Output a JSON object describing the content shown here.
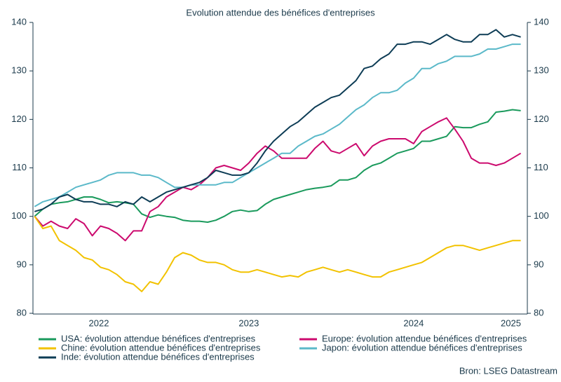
{
  "chart_data": {
    "type": "line",
    "title": "Evolution attendue des bénéfices d'entreprises",
    "source": "Bron: LSEG Datastream",
    "x": [
      2022.2,
      2022.25,
      2022.3,
      2022.35,
      2022.4,
      2022.45,
      2022.5,
      2022.55,
      2022.6,
      2022.65,
      2022.7,
      2022.75,
      2022.8,
      2022.85,
      2022.9,
      2022.95,
      2023.0,
      2023.05,
      2023.1,
      2023.15,
      2023.2,
      2023.25,
      2023.3,
      2023.35,
      2023.4,
      2023.45,
      2023.5,
      2023.55,
      2023.6,
      2023.65,
      2023.7,
      2023.75,
      2023.8,
      2023.85,
      2023.9,
      2023.95,
      2024.0,
      2024.05,
      2024.1,
      2024.15,
      2024.2,
      2024.25,
      2024.3,
      2024.35,
      2024.4,
      2024.45,
      2024.5,
      2024.55,
      2024.6,
      2024.65,
      2024.7,
      2024.75,
      2024.8,
      2024.85,
      2024.9,
      2024.95,
      2025.0,
      2025.05,
      2025.1,
      2025.15
    ],
    "xlim": [
      2022.19,
      2025.19
    ],
    "xticks": [
      {
        "value": 2022.59,
        "label": "2022"
      },
      {
        "value": 2023.5,
        "label": "2023"
      },
      {
        "value": 2024.5,
        "label": "2024"
      },
      {
        "value": 2025.09,
        "label": "2025"
      }
    ],
    "ylim": [
      80,
      140
    ],
    "yticks": [
      80,
      90,
      100,
      110,
      120,
      130,
      140
    ],
    "y2lim": [
      80,
      140
    ],
    "y2ticks": [
      80,
      90,
      100,
      110,
      120,
      130,
      140
    ],
    "grid": false,
    "series": [
      {
        "name": "USA: évolution attendue bénéfices d'entreprises",
        "color": "#1a9a5c",
        "values": [
          100,
          101.5,
          102.5,
          102.8,
          103,
          103.5,
          104,
          104,
          103.5,
          102.8,
          103,
          102.8,
          102.5,
          100.5,
          99.8,
          100.3,
          100,
          99.8,
          99.2,
          99,
          99,
          98.8,
          99.2,
          100,
          101,
          101.3,
          101,
          101.2,
          102.5,
          103.5,
          104,
          104.5,
          105,
          105.5,
          105.8,
          106,
          106.3,
          107.5,
          107.5,
          108,
          109.5,
          110.5,
          111,
          112,
          113,
          113.5,
          114,
          115.5,
          115.5,
          116,
          116.5,
          118.5,
          118.3,
          118.3,
          119,
          119.5,
          121.5,
          121.7,
          122,
          121.8
        ]
      },
      {
        "name": "Europe: évolution attendue bénéfices d'entreprises",
        "color": "#cc0a6e",
        "values": [
          100,
          98,
          99,
          98,
          97.5,
          99.5,
          98.5,
          96,
          98,
          97.5,
          96.5,
          95,
          97,
          97,
          101,
          102,
          104,
          105,
          106,
          105.5,
          106.5,
          108,
          110,
          110.5,
          110,
          109.5,
          111,
          113,
          114.5,
          113.5,
          112,
          112,
          112,
          112,
          114,
          115.5,
          113.5,
          113,
          114,
          115,
          112.5,
          114.5,
          115.5,
          116,
          116,
          116,
          115,
          117.5,
          118.5,
          119.5,
          120.3,
          118,
          115.5,
          112,
          111,
          111,
          110.5,
          111,
          112,
          113
        ]
      },
      {
        "name": "Chine: évolution attendue bénéfices d'entreprises",
        "color": "#f2c200",
        "values": [
          100,
          97.5,
          98,
          95,
          94,
          93,
          91.5,
          91,
          89.5,
          89,
          88,
          86.5,
          86,
          84.5,
          86.5,
          86,
          88.5,
          91.5,
          92.5,
          92,
          91,
          90.5,
          90.5,
          90,
          89,
          88.5,
          88.5,
          89,
          88.5,
          88,
          87.5,
          87.8,
          87.5,
          88.5,
          89,
          89.5,
          89,
          88.5,
          89,
          88.5,
          88,
          87.5,
          87.5,
          88.5,
          89,
          89.5,
          90,
          90.5,
          91.5,
          92.5,
          93.5,
          94,
          94,
          93.5,
          93,
          93.5,
          94,
          94.5,
          95,
          95
        ]
      },
      {
        "name": "Japon: évolution attendue bénéfices d'entreprises",
        "color": "#5bb9c9",
        "values": [
          102,
          103,
          103.5,
          104,
          105,
          106,
          106.5,
          107,
          107.5,
          108.5,
          109,
          109,
          109,
          108.5,
          108.5,
          108,
          107,
          106,
          106,
          106.5,
          106.5,
          106.5,
          106.5,
          107,
          107,
          108,
          109,
          110,
          111,
          112,
          113,
          113,
          114.5,
          115.5,
          116.5,
          117,
          118,
          119,
          120.5,
          122,
          123,
          124.5,
          125.5,
          125.5,
          126,
          127.5,
          128.5,
          130.5,
          130.5,
          131.5,
          132,
          133,
          133,
          133,
          133.5,
          134.5,
          134.5,
          135,
          135.5,
          135.5
        ]
      },
      {
        "name": "Inde: évolution attendue bénéfices d'entreprises",
        "color": "#0d3c55",
        "values": [
          101,
          101.5,
          102.5,
          104,
          104.5,
          103.5,
          103,
          103,
          102.5,
          102.5,
          102,
          103,
          102.5,
          104,
          103,
          104,
          105,
          105.5,
          106,
          106.5,
          107,
          108,
          109.5,
          109,
          108.5,
          108.5,
          109,
          111,
          113.5,
          115.5,
          117,
          118.5,
          119.5,
          121,
          122.5,
          123.5,
          124.5,
          125,
          126.5,
          128,
          130.5,
          131,
          132.5,
          133.5,
          135.5,
          135.5,
          136,
          136,
          135.5,
          136.5,
          137.5,
          136.5,
          136,
          136,
          137.5,
          137.5,
          138.5,
          137,
          137.5,
          137
        ]
      }
    ]
  }
}
